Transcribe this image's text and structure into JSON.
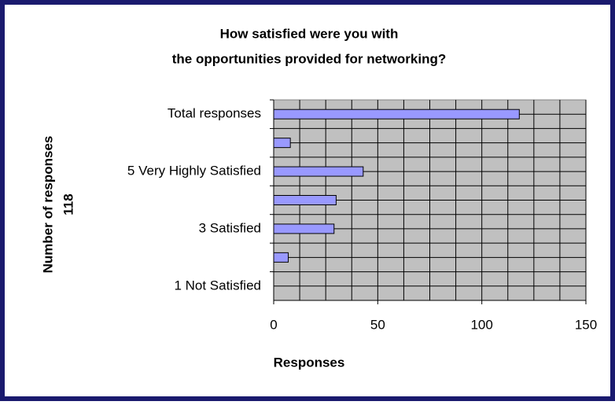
{
  "chart_data": {
    "type": "bar",
    "orientation": "horizontal",
    "title": [
      "How satisfied were you with",
      "the opportunities provided for networking?"
    ],
    "y_label": [
      "Number of responses",
      "118"
    ],
    "x_label": "Responses",
    "categories": [
      "Total responses",
      null,
      "5 Very Highly Satisfied",
      null,
      "3 Satisfied",
      null,
      "1 Not Satisfied"
    ],
    "values": [
      118,
      8,
      43,
      30,
      29,
      7,
      0
    ],
    "color": "#9999ff",
    "xlim": [
      0,
      150
    ],
    "xticks": [
      0,
      50,
      100,
      150
    ],
    "xgrid": [
      12.5,
      25,
      37.5,
      50,
      62.5,
      75,
      87.5,
      100,
      112.5,
      125,
      137.5,
      150
    ],
    "grid": true
  }
}
